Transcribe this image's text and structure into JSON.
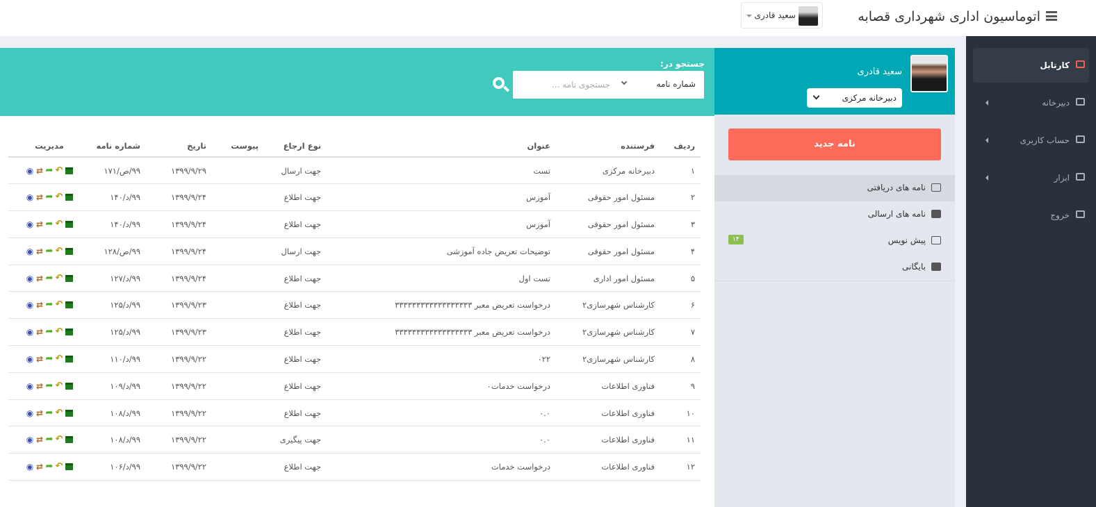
{
  "header": {
    "title": "اتوماسیون اداری شهرداری قصابه",
    "user_name": "سعید قادری"
  },
  "sidebar": {
    "items": [
      {
        "label": "کارتابل",
        "icon": "laptop-icon",
        "active": true
      },
      {
        "label": "دبیرخانه",
        "icon": "stack-icon",
        "arrow": true
      },
      {
        "label": "حساب کاربری",
        "icon": "gear-icon",
        "arrow": true
      },
      {
        "label": "ابزار",
        "icon": "book-icon",
        "arrow": true
      },
      {
        "label": "خروج",
        "icon": "sign-out-icon"
      }
    ]
  },
  "profile": {
    "name": "سعید قادری",
    "office": "دبیرخانه مرکزی"
  },
  "new_letter_label": "نامه جدید",
  "folders": [
    {
      "label": "نامه های دریافتی",
      "icon": "envelope-icon",
      "active": true
    },
    {
      "label": "نامه های ارسالی",
      "icon": "pencil-square-icon"
    },
    {
      "label": "پیش نویس",
      "icon": "edit-icon",
      "badge": "۱۴"
    },
    {
      "label": "بایگانی",
      "icon": "archive-icon"
    }
  ],
  "search": {
    "label": "جستجو در:",
    "field": "شماره نامه",
    "placeholder": "جستجوی نامه ..."
  },
  "table": {
    "headers": [
      "ردیف",
      "فرستنده",
      "عنوان",
      "نوع ارجاع",
      "پیوست",
      "تاریخ",
      "شماره نامه",
      "مدیریت"
    ],
    "rows": [
      [
        "۱",
        "دبیرخانه مرکزی",
        "تست",
        "جهت ارسال",
        "",
        "۱۳۹۹/۹/۲۹",
        "۹۹/ص/۱۷۱"
      ],
      [
        "۲",
        "مسئول امور حقوقی",
        "آموزس",
        "جهت اطلاع",
        "",
        "۱۳۹۹/۹/۲۴",
        "۹۹/د/۱۴۰"
      ],
      [
        "۳",
        "مسئول امور حقوقی",
        "آموزس",
        "جهت اطلاع",
        "",
        "۱۳۹۹/۹/۲۴",
        "۹۹/د/۱۴۰"
      ],
      [
        "۴",
        "مسئول امور حقوقی",
        "توضیحات تعریض جاده آموزشی",
        "جهت ارسال",
        "",
        "۱۳۹۹/۹/۲۴",
        "۹۹/ص/۱۲۸"
      ],
      [
        "۵",
        "مسئول امور اداری",
        "تست اول",
        "جهت اطلاع",
        "",
        "۱۳۹۹/۹/۲۴",
        "۹۹/د/۱۲۷"
      ],
      [
        "۶",
        "کارشناس شهرسازی۲",
        "درخواست تعریض معبر ۳۳۳۳۳۳۳۳۳۳۳۳۳۳۳۳۳۳",
        "جهت اطلاع",
        "",
        "۱۳۹۹/۹/۲۳",
        "۹۹/د/۱۲۵"
      ],
      [
        "۷",
        "کارشناس شهرسازی۲",
        "درخواست تعریض معبر ۳۳۳۳۳۳۳۳۳۳۳۳۳۳۳۳۳۳",
        "جهت اطلاع",
        "",
        "۱۳۹۹/۹/۲۳",
        "۹۹/د/۱۲۵"
      ],
      [
        "۸",
        "کارشناس شهرسازی۲",
        "۰۲۲",
        "جهت اطلاع",
        "",
        "۱۳۹۹/۹/۲۲",
        "۹۹/د/۱۱۰"
      ],
      [
        "۹",
        "فناوری اطلاعات",
        "درخواست خدمات۰",
        "جهت اطلاع",
        "",
        "۱۳۹۹/۹/۲۲",
        "۹۹/د/۱۰۹"
      ],
      [
        "۱۰",
        "فناوری اطلاعات",
        "۰.۰",
        "جهت اطلاع",
        "",
        "۱۳۹۹/۹/۲۲",
        "۹۹/د/۱۰۸"
      ],
      [
        "۱۱",
        "فناوری اطلاعات",
        "۰.۰",
        "جهت پیگیری",
        "",
        "۱۳۹۹/۹/۲۲",
        "۹۹/د/۱۰۸"
      ],
      [
        "۱۲",
        "فناوری اطلاعات",
        "درخواست خدمات",
        "جهت اطلاع",
        "",
        "۱۳۹۹/۹/۲۲",
        "۹۹/د/۱۰۶"
      ]
    ],
    "row_actions": [
      "view-icon",
      "refer-icon",
      "forward-icon",
      "reply-icon",
      "archive-icon"
    ]
  },
  "colors": {
    "sidebar": "#29323c",
    "teal_profile": "#00a8b5",
    "teal_search": "#40c9bd",
    "new_button": "#fe6b5b",
    "badge": "#8cc152"
  }
}
